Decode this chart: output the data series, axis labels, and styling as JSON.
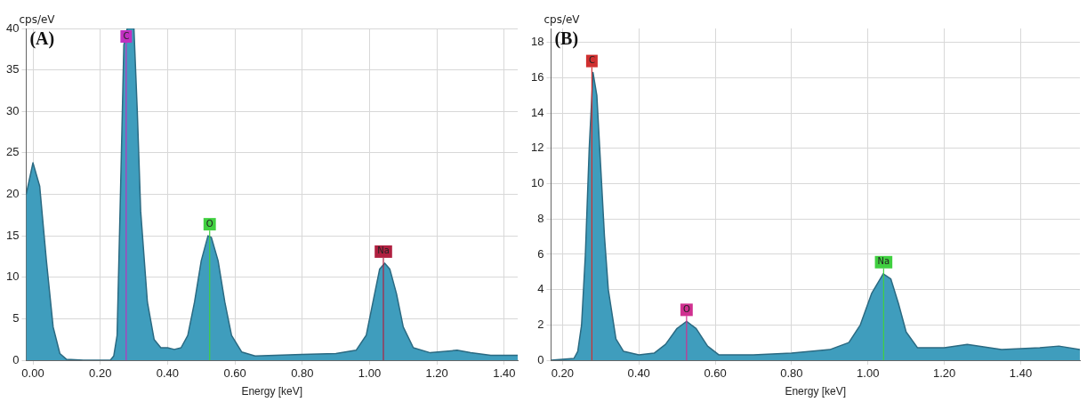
{
  "chart_data": [
    {
      "type": "area",
      "title": "(A)",
      "xlabel": "Energy [keV]",
      "ylabel": "cps/eV",
      "grid": true,
      "legend": false,
      "marker": "none",
      "xlim": [
        -0.02,
        1.44
      ],
      "ylim": [
        0,
        40
      ],
      "xticks": [
        {
          "value": 0,
          "label": "0.00"
        },
        {
          "value": 0.2,
          "label": "0.20"
        },
        {
          "value": 0.4,
          "label": "0.40"
        },
        {
          "value": 0.6,
          "label": "0.60"
        },
        {
          "value": 0.8,
          "label": "0.80"
        },
        {
          "value": 1,
          "label": "1.00"
        },
        {
          "value": 1.2,
          "label": "1.20"
        },
        {
          "value": 1.4,
          "label": "1.40"
        }
      ],
      "yticks": [
        0,
        5,
        10,
        15,
        20,
        25,
        30,
        35,
        40
      ],
      "series": [
        {
          "color": "#3f9dbd",
          "x": [
            -0.02,
            0,
            0.02,
            0.04,
            0.06,
            0.08,
            0.1,
            0.15,
            0.23,
            0.24,
            0.25,
            0.26,
            0.27,
            0.28,
            0.3,
            0.31,
            0.32,
            0.34,
            0.36,
            0.38,
            0.4,
            0.42,
            0.44,
            0.46,
            0.48,
            0.5,
            0.52,
            0.53,
            0.55,
            0.57,
            0.59,
            0.62,
            0.66,
            0.8,
            0.9,
            0.96,
            0.99,
            1.01,
            1.03,
            1.045,
            1.06,
            1.08,
            1.1,
            1.13,
            1.18,
            1.26,
            1.3,
            1.36,
            1.44
          ],
          "values": [
            20,
            23.8,
            21,
            12,
            4,
            0.8,
            0.1,
            0,
            0,
            0.5,
            3,
            20,
            38,
            40,
            40,
            30,
            18,
            7,
            2.5,
            1.5,
            1.5,
            1.3,
            1.5,
            3,
            7,
            12,
            15,
            14.8,
            12,
            7,
            3,
            1,
            0.5,
            0.7,
            0.8,
            1.2,
            3,
            7,
            11,
            11.7,
            11,
            8,
            4,
            1.5,
            0.9,
            1.2,
            0.9,
            0.6,
            0.6
          ]
        }
      ],
      "ref_lines": [
        {
          "axis": "x",
          "value": 0.277,
          "label": "C",
          "color": "#c030c0"
        },
        {
          "axis": "x",
          "value": 0.525,
          "label": "O",
          "color": "#40d040"
        },
        {
          "axis": "x",
          "value": 1.041,
          "label": "Na",
          "color": "#b02040"
        }
      ]
    },
    {
      "type": "area",
      "title": "(B)",
      "xlabel": "Energy [keV]",
      "ylabel": "cps/eV",
      "grid": true,
      "legend": false,
      "marker": "none",
      "xlim": [
        0.17,
        1.555
      ],
      "ylim": [
        0,
        18.8
      ],
      "xticks": [
        {
          "value": 0.2,
          "label": "0.20"
        },
        {
          "value": 0.4,
          "label": "0.40"
        },
        {
          "value": 0.6,
          "label": "0.60"
        },
        {
          "value": 0.8,
          "label": "0.80"
        },
        {
          "value": 1,
          "label": "1.00"
        },
        {
          "value": 1.2,
          "label": "1.20"
        },
        {
          "value": 1.4,
          "label": "1.40"
        }
      ],
      "yticks": [
        0,
        2,
        4,
        6,
        8,
        10,
        12,
        14,
        16,
        18
      ],
      "series": [
        {
          "color": "#3f9dbd",
          "x": [
            0.17,
            0.23,
            0.24,
            0.25,
            0.26,
            0.27,
            0.28,
            0.29,
            0.3,
            0.31,
            0.32,
            0.34,
            0.36,
            0.4,
            0.44,
            0.47,
            0.5,
            0.525,
            0.55,
            0.58,
            0.61,
            0.7,
            0.8,
            0.9,
            0.95,
            0.98,
            1.01,
            1.04,
            1.06,
            1.08,
            1.1,
            1.13,
            1.2,
            1.26,
            1.35,
            1.45,
            1.5,
            1.555
          ],
          "values": [
            0,
            0.1,
            0.5,
            2,
            6,
            12,
            16.3,
            15,
            11,
            7,
            4,
            1.2,
            0.5,
            0.3,
            0.4,
            0.9,
            1.8,
            2.2,
            1.8,
            0.8,
            0.3,
            0.3,
            0.4,
            0.6,
            1,
            2,
            3.8,
            4.9,
            4.6,
            3.2,
            1.6,
            0.7,
            0.7,
            0.9,
            0.6,
            0.7,
            0.8,
            0.6
          ]
        }
      ],
      "ref_lines": [
        {
          "axis": "x",
          "value": 0.277,
          "label": "C",
          "color": "#d03030"
        },
        {
          "axis": "x",
          "value": 0.525,
          "label": "O",
          "color": "#d03090"
        },
        {
          "axis": "x",
          "value": 1.041,
          "label": "Na",
          "color": "#40d040"
        }
      ]
    }
  ]
}
